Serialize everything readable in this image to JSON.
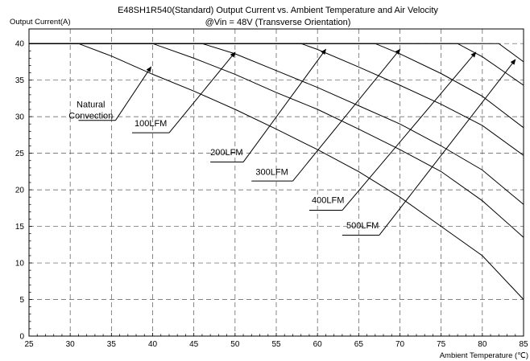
{
  "chart_data": {
    "type": "line",
    "title": "E48SH1R540(Standard)  Output Current vs. Ambient Temperature and Air Velocity",
    "subtitle": "@Vin = 48V (Transverse Orientation)",
    "ylabel": "Output Current(A)",
    "xlabel": "Ambient Temperature (℃)",
    "xlim": [
      25,
      85
    ],
    "ylim": [
      0,
      42
    ],
    "x_ticks": [
      25,
      30,
      35,
      40,
      45,
      50,
      55,
      60,
      65,
      70,
      75,
      80,
      85
    ],
    "y_ticks": [
      0,
      5,
      10,
      15,
      20,
      25,
      30,
      35,
      40
    ],
    "x_tick_labels": [
      "25",
      "30",
      "35",
      "40",
      "45",
      "50",
      "55",
      "60",
      "65",
      "70",
      "75",
      "80",
      "85"
    ],
    "y_tick_labels": [
      "0",
      "5",
      "10",
      "15",
      "20",
      "25",
      "30",
      "35",
      "40"
    ],
    "grid": true,
    "series": [
      {
        "name": "Natural\nConvection",
        "label_lines": [
          "Natural",
          "Convection"
        ],
        "x": [
          25,
          31,
          35,
          40,
          45,
          50,
          55,
          60,
          65,
          70,
          75,
          80,
          85
        ],
        "y": [
          40,
          40,
          38.3,
          35.8,
          33.5,
          31.0,
          28.3,
          25.5,
          22.5,
          19.0,
          15.0,
          11.0,
          5.0
        ]
      },
      {
        "name": "100LFM",
        "label_lines": [
          "100LFM"
        ],
        "x": [
          25,
          40,
          45,
          50,
          55,
          60,
          65,
          70,
          75,
          80,
          85
        ],
        "y": [
          40,
          40,
          38.0,
          35.8,
          33.3,
          31.0,
          28.3,
          25.5,
          22.5,
          18.5,
          13.5
        ]
      },
      {
        "name": "200LFM",
        "label_lines": [
          "200LFM"
        ],
        "x": [
          25,
          46,
          50,
          55,
          60,
          65,
          70,
          75,
          80,
          85
        ],
        "y": [
          40,
          40,
          38.6,
          36.3,
          34.0,
          31.5,
          29.0,
          26.0,
          22.7,
          18.0
        ]
      },
      {
        "name": "300LFM",
        "label_lines": [
          "300LFM"
        ],
        "x": [
          25,
          58,
          60,
          65,
          70,
          75,
          80,
          85
        ],
        "y": [
          40,
          40,
          39.2,
          36.8,
          34.3,
          31.7,
          28.8,
          24.7
        ]
      },
      {
        "name": "400LFM",
        "label_lines": [
          "400LFM"
        ],
        "x": [
          25,
          67,
          70,
          75,
          80,
          85
        ],
        "y": [
          40,
          40,
          38.6,
          35.9,
          32.8,
          28.5
        ]
      },
      {
        "name": "500LFM",
        "label_lines": [
          "500LFM"
        ],
        "x": [
          25,
          77,
          80,
          85
        ],
        "y": [
          40,
          40,
          38.2,
          34.3
        ]
      },
      {
        "name": "",
        "label_lines": [],
        "x": [
          25,
          82,
          85
        ],
        "y": [
          40,
          40,
          37.5
        ]
      }
    ],
    "annotations": [
      {
        "series": 0,
        "label_lines": [
          "Natural",
          "Convection"
        ],
        "label_at": [
          32.5,
          29.5
        ],
        "line_from": [
          31,
          29.5
        ],
        "line_to": [
          35.5,
          29.5
        ],
        "arrow_from": [
          35.5,
          29.5
        ],
        "arrow_to": [
          39.8,
          36.8
        ]
      },
      {
        "series": 1,
        "label_lines": [
          "100LFM"
        ],
        "label_at": [
          37.8,
          28.5
        ],
        "line_from": [
          37.5,
          27.8
        ],
        "line_to": [
          42.0,
          27.8
        ],
        "arrow_from": [
          42.0,
          27.8
        ],
        "arrow_to": [
          50.0,
          38.8
        ]
      },
      {
        "series": 2,
        "label_lines": [
          "200LFM"
        ],
        "label_at": [
          47.0,
          24.5
        ],
        "line_from": [
          47.0,
          23.8
        ],
        "line_to": [
          51.0,
          23.8
        ],
        "arrow_from": [
          51.0,
          23.8
        ],
        "arrow_to": [
          61.0,
          39.2
        ]
      },
      {
        "series": 3,
        "label_lines": [
          "300LFM"
        ],
        "label_at": [
          52.5,
          21.8
        ],
        "line_from": [
          52.0,
          21.2
        ],
        "line_to": [
          57.0,
          21.2
        ],
        "arrow_from": [
          57.0,
          21.2
        ],
        "arrow_to": [
          70.0,
          39.2
        ]
      },
      {
        "series": 4,
        "label_lines": [
          "400LFM"
        ],
        "label_at": [
          59.3,
          18.0
        ],
        "line_from": [
          59.0,
          17.2
        ],
        "line_to": [
          63.0,
          17.2
        ],
        "arrow_from": [
          63.0,
          17.2
        ],
        "arrow_to": [
          79.2,
          38.8
        ]
      },
      {
        "series": 5,
        "label_lines": [
          "500LFM"
        ],
        "label_at": [
          63.5,
          14.5
        ],
        "line_from": [
          63.0,
          13.8
        ],
        "line_to": [
          67.5,
          13.8
        ],
        "arrow_from": [
          67.5,
          13.8
        ],
        "arrow_to": [
          84.0,
          37.8
        ]
      }
    ]
  }
}
